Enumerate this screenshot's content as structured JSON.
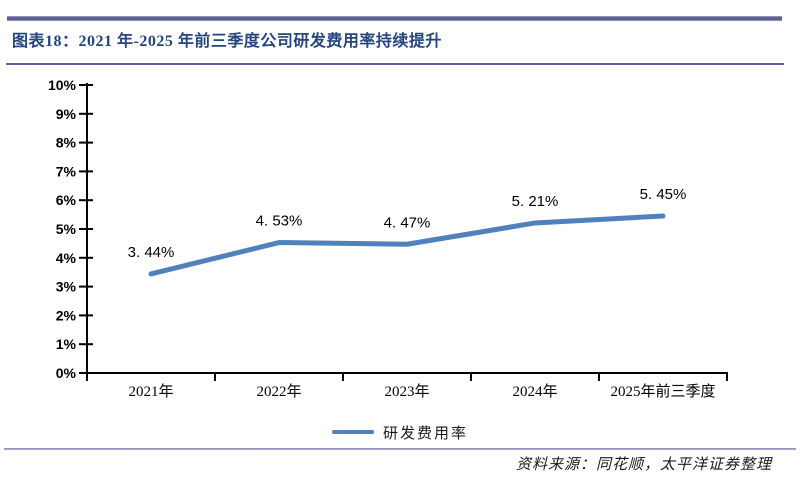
{
  "header": {
    "title": "图表18：2021 年-2025 年前三季度公司研发费用率持续提升"
  },
  "chart_data": {
    "type": "line",
    "title": "",
    "categories": [
      "2021年",
      "2022年",
      "2023年",
      "2024年",
      "2025年前三季度"
    ],
    "series": [
      {
        "name": "研发费用率",
        "values": [
          3.44,
          4.53,
          4.47,
          5.21,
          5.45
        ],
        "color": "#4F81BD"
      }
    ],
    "point_labels": [
      "3. 44%",
      "4. 53%",
      "4. 47%",
      "5. 21%",
      "5. 45%"
    ],
    "xlabel": "",
    "ylabel": "",
    "ylim": [
      0,
      10
    ],
    "ytick_step": 1,
    "ytick_labels": [
      "0%",
      "1%",
      "2%",
      "3%",
      "4%",
      "5%",
      "6%",
      "7%",
      "8%",
      "9%",
      "10%"
    ],
    "grid": false,
    "legend_position": "bottom"
  },
  "legend": {
    "items": [
      {
        "label": "研发费用率",
        "color": "#4F81BD"
      }
    ]
  },
  "footer": {
    "source": "资料来源：同花顺，太平洋证券整理"
  },
  "colors": {
    "line": "#4F81BD",
    "title_text": "#24457E",
    "top_band": "#5D5D93",
    "title_divider": "#6060A8",
    "footer_divider": "#9191BA",
    "axis": "#000000",
    "label_text": "#000000"
  }
}
